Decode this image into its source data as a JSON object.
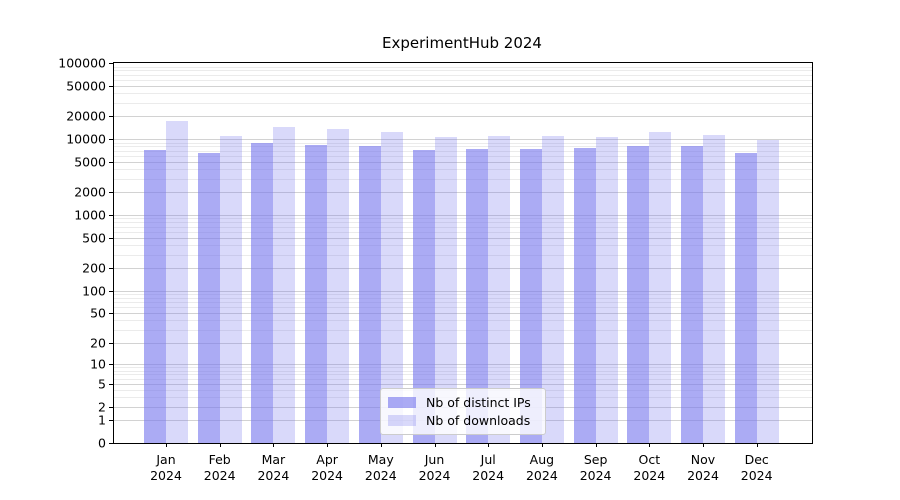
{
  "title": "ExperimentHub 2024",
  "chart_data": {
    "type": "bar",
    "title": "ExperimentHub 2024",
    "categories": [
      "Jan",
      "Feb",
      "Mar",
      "Apr",
      "May",
      "Jun",
      "Jul",
      "Aug",
      "Sep",
      "Oct",
      "Nov",
      "Dec"
    ],
    "xtick_year": "2024",
    "series": [
      {
        "name": "Nb of distinct IPs",
        "color": "rgba(119,119,238,0.62)",
        "values": [
          7200,
          6600,
          8900,
          8400,
          8200,
          7280,
          7500,
          7500,
          7550,
          8200,
          8000,
          6650
        ]
      },
      {
        "name": "Nb of downloads",
        "color": "rgba(119,119,238,0.28)",
        "values": [
          17300,
          11000,
          14500,
          13600,
          12500,
          10500,
          10900,
          11100,
          10750,
          12300,
          11450,
          9700
        ]
      }
    ],
    "yscale": "log10(value+1)",
    "ylim": [
      0,
      100000
    ],
    "yticks": [
      0,
      1,
      2,
      5,
      10,
      20,
      50,
      100,
      200,
      500,
      1000,
      2000,
      5000,
      10000,
      20000,
      50000,
      100000
    ],
    "grid": true,
    "legend_position": "lower center",
    "xlabel": "",
    "ylabel": ""
  },
  "colors": {
    "bar_dark": "rgba(119,119,238,0.62)",
    "bar_light": "rgba(119,119,238,0.28)",
    "grid_major": "#d2d2d2",
    "grid_minor": "#ebebeb",
    "spine": "#000000",
    "legend_border": "#cccccc"
  }
}
